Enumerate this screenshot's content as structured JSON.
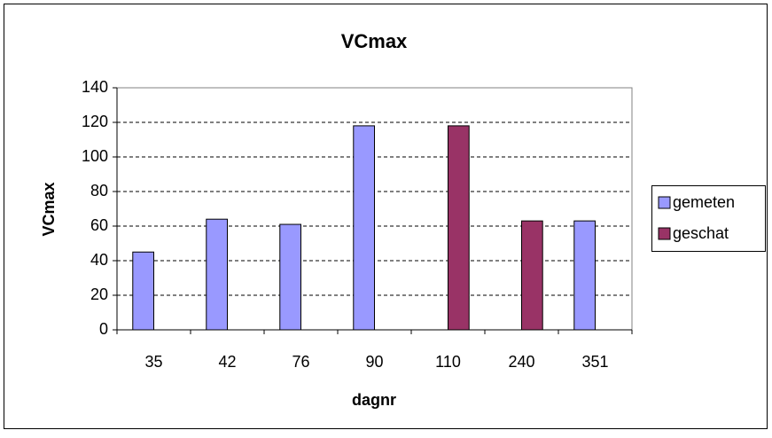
{
  "chart_data": {
    "type": "bar",
    "title": "VCmax",
    "x_label": "dagnr",
    "y_label": "VCmax",
    "categories": [
      "35",
      "42",
      "76",
      "90",
      "110",
      "240",
      "351"
    ],
    "series": [
      {
        "name": "gemeten",
        "color": "#9999ff",
        "values": [
          45,
          64,
          61,
          118,
          null,
          null,
          63
        ]
      },
      {
        "name": "geschat",
        "color": "#993366",
        "values": [
          null,
          null,
          null,
          null,
          118,
          63,
          null
        ]
      }
    ],
    "ylim": [
      0,
      140
    ],
    "yticks": [
      0,
      20,
      40,
      60,
      80,
      100,
      120,
      140
    ],
    "grid": true,
    "legend": "right"
  }
}
